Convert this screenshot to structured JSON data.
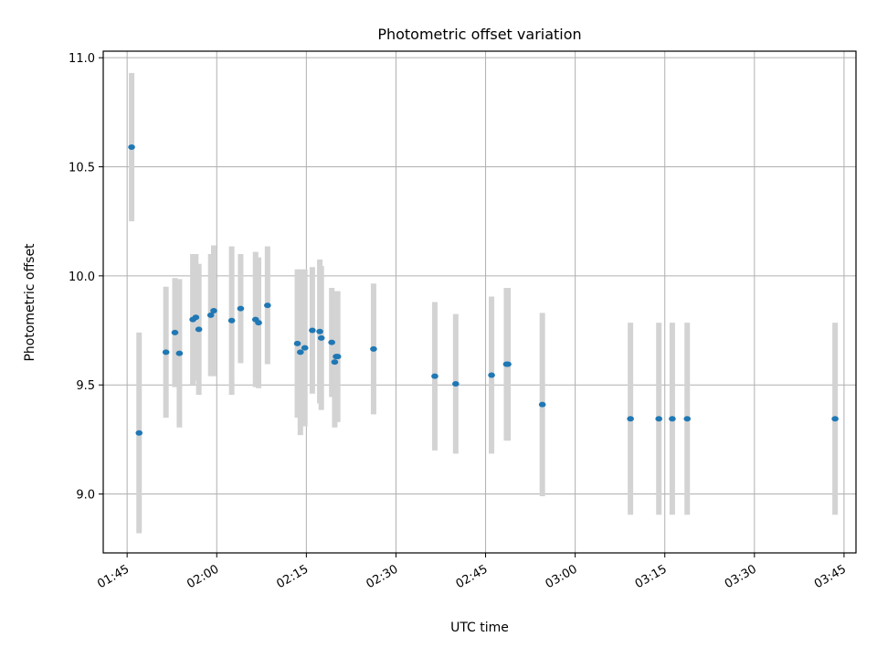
{
  "chart_data": {
    "type": "scatter",
    "title": "Photometric offset variation",
    "xlabel": "UTC time",
    "ylabel": "Photometric offset",
    "x_axis_type": "time",
    "xlim": [
      "01:41",
      "03:47"
    ],
    "ylim": [
      8.73,
      11.03
    ],
    "x_ticks": [
      "01:45",
      "02:00",
      "02:15",
      "02:30",
      "02:45",
      "03:00",
      "03:15",
      "03:30",
      "03:45"
    ],
    "y_ticks": [
      9.0,
      9.5,
      10.0,
      10.5,
      11.0
    ],
    "y_tick_labels": [
      "9.0",
      "9.5",
      "10.0",
      "10.5",
      "11.0"
    ],
    "grid": true,
    "marker_color": "#1f77b4",
    "errorbar_color": "#d3d3d3",
    "points": [
      {
        "x": "01:45:45",
        "y": 10.59,
        "err": 0.34
      },
      {
        "x": "01:47:00",
        "y": 9.28,
        "err": 0.46
      },
      {
        "x": "01:51:30",
        "y": 9.65,
        "err": 0.3
      },
      {
        "x": "01:53:00",
        "y": 9.74,
        "err": 0.25
      },
      {
        "x": "01:53:45",
        "y": 9.645,
        "err": 0.34
      },
      {
        "x": "01:56:00",
        "y": 9.8,
        "err": 0.3
      },
      {
        "x": "01:56:30",
        "y": 9.81,
        "err": 0.29
      },
      {
        "x": "01:57:00",
        "y": 9.755,
        "err": 0.3
      },
      {
        "x": "01:59:00",
        "y": 9.82,
        "err": 0.28
      },
      {
        "x": "01:59:30",
        "y": 9.84,
        "err": 0.3
      },
      {
        "x": "02:02:30",
        "y": 9.795,
        "err": 0.34
      },
      {
        "x": "02:04:00",
        "y": 9.85,
        "err": 0.25
      },
      {
        "x": "02:06:30",
        "y": 9.8,
        "err": 0.31
      },
      {
        "x": "02:07:00",
        "y": 9.785,
        "err": 0.3
      },
      {
        "x": "02:08:30",
        "y": 9.865,
        "err": 0.27
      },
      {
        "x": "02:13:30",
        "y": 9.69,
        "err": 0.34
      },
      {
        "x": "02:14:00",
        "y": 9.65,
        "err": 0.38
      },
      {
        "x": "02:14:45",
        "y": 9.67,
        "err": 0.36
      },
      {
        "x": "02:16:00",
        "y": 9.75,
        "err": 0.29
      },
      {
        "x": "02:17:15",
        "y": 9.745,
        "err": 0.33
      },
      {
        "x": "02:17:30",
        "y": 9.715,
        "err": 0.33
      },
      {
        "x": "02:19:15",
        "y": 9.695,
        "err": 0.25
      },
      {
        "x": "02:19:45",
        "y": 9.605,
        "err": 0.3
      },
      {
        "x": "02:20:00",
        "y": 9.63,
        "err": 0.3
      },
      {
        "x": "02:20:15",
        "y": 9.63,
        "err": 0.3
      },
      {
        "x": "02:26:15",
        "y": 9.665,
        "err": 0.3
      },
      {
        "x": "02:36:30",
        "y": 9.54,
        "err": 0.34
      },
      {
        "x": "02:40:00",
        "y": 9.505,
        "err": 0.32
      },
      {
        "x": "02:46:00",
        "y": 9.545,
        "err": 0.36
      },
      {
        "x": "02:48:30",
        "y": 9.595,
        "err": 0.35
      },
      {
        "x": "02:48:45",
        "y": 9.595,
        "err": 0.35
      },
      {
        "x": "02:54:30",
        "y": 9.41,
        "err": 0.42
      },
      {
        "x": "03:09:15",
        "y": 9.345,
        "err": 0.44
      },
      {
        "x": "03:14:00",
        "y": 9.345,
        "err": 0.44
      },
      {
        "x": "03:16:15",
        "y": 9.345,
        "err": 0.44
      },
      {
        "x": "03:18:45",
        "y": 9.345,
        "err": 0.44
      },
      {
        "x": "03:43:30",
        "y": 9.345,
        "err": 0.44
      }
    ]
  }
}
